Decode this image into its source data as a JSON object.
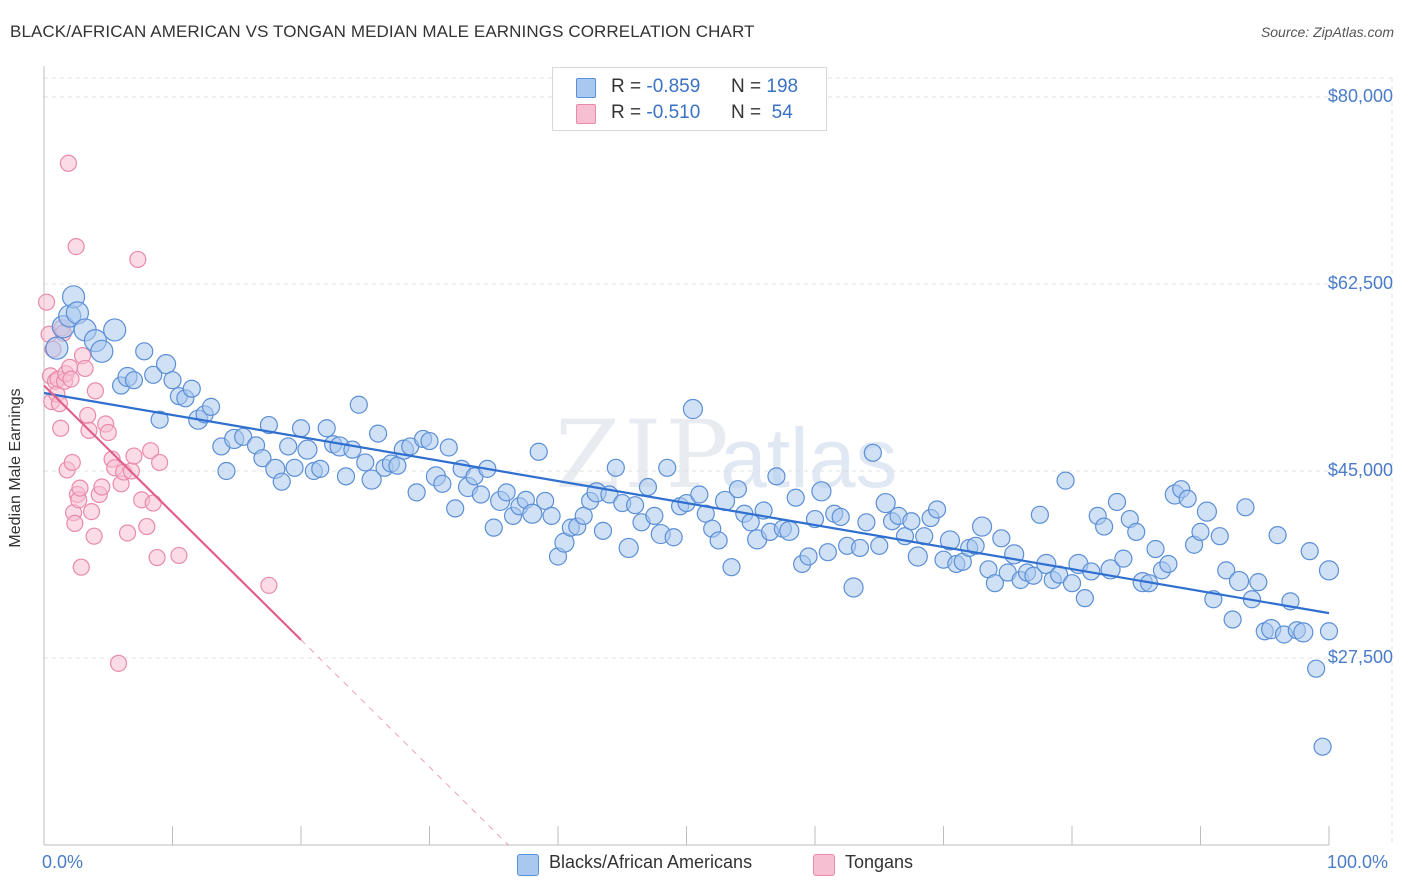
{
  "title": "BLACK/AFRICAN AMERICAN VS TONGAN MEDIAN MALE EARNINGS CORRELATION CHART",
  "source": "Source: ZipAtlas.com",
  "legend": {
    "rows": [
      {
        "r_label": "R =",
        "r_value": "-0.859",
        "n_label": "N =",
        "n_value": "198"
      },
      {
        "r_label": "R =",
        "r_value": "-0.510",
        "n_label": "N =",
        "n_value": "54"
      }
    ]
  },
  "bottom_legend": [
    "Blacks/African Americans",
    "Tongans"
  ],
  "colors": {
    "blue_fill": "#a9c8ef",
    "blue_stroke": "#5b8fd6",
    "blue_line": "#2f6fcf",
    "pink_fill": "#f7bfd2",
    "pink_stroke": "#e98aab",
    "pink_line": "#e0608c",
    "grid": "#e3e3e3",
    "tick_text": "#4a7cc9"
  },
  "chart_data": {
    "type": "scatter",
    "title": "BLACK/AFRICAN AMERICAN VS TONGAN MEDIAN MALE EARNINGS CORRELATION CHART",
    "xlabel": "",
    "ylabel": "Median Male Earnings",
    "xlim": [
      0,
      100
    ],
    "ylim": [
      10000,
      83000
    ],
    "x_tick_labels": [
      "0.0%",
      "100.0%"
    ],
    "y_ticks": [
      27500,
      45000,
      62500,
      80000
    ],
    "y_tick_labels": [
      "$27,500",
      "$45,000",
      "$62,500",
      "$80,000"
    ],
    "grid": true,
    "legend_position": "top-center",
    "series": [
      {
        "name": "Blacks/African Americans",
        "stats": {
          "R": -0.859,
          "N": 198
        },
        "trendline": {
          "x": [
            0,
            100
          ],
          "y": [
            52300,
            31700
          ]
        },
        "points": [
          [
            1.0,
            56500
          ],
          [
            1.5,
            58500
          ],
          [
            2.0,
            59500
          ],
          [
            2.3,
            61300
          ],
          [
            2.6,
            59800
          ],
          [
            3.2,
            58200
          ],
          [
            4.0,
            57200
          ],
          [
            4.5,
            56200
          ],
          [
            5.5,
            58200
          ],
          [
            6.0,
            53000
          ],
          [
            6.5,
            53800
          ],
          [
            7.0,
            53500
          ],
          [
            7.8,
            56200
          ],
          [
            8.5,
            54000
          ],
          [
            9.0,
            49800
          ],
          [
            9.5,
            55000
          ],
          [
            10.0,
            53500
          ],
          [
            10.5,
            52000
          ],
          [
            11.0,
            51800
          ],
          [
            11.5,
            52700
          ],
          [
            12.0,
            49800
          ],
          [
            12.5,
            50300
          ],
          [
            13.0,
            51000
          ],
          [
            13.8,
            47300
          ],
          [
            14.2,
            45000
          ],
          [
            14.8,
            48000
          ],
          [
            15.5,
            48200
          ],
          [
            16.5,
            47400
          ],
          [
            17.0,
            46200
          ],
          [
            17.5,
            49300
          ],
          [
            18.0,
            45200
          ],
          [
            18.5,
            44000
          ],
          [
            19.0,
            47300
          ],
          [
            19.5,
            45300
          ],
          [
            20.0,
            49000
          ],
          [
            20.5,
            47000
          ],
          [
            21.0,
            45000
          ],
          [
            21.5,
            45200
          ],
          [
            22.0,
            49000
          ],
          [
            22.5,
            47500
          ],
          [
            23.0,
            47300
          ],
          [
            23.5,
            44500
          ],
          [
            24.0,
            47000
          ],
          [
            24.5,
            51200
          ],
          [
            25.0,
            45800
          ],
          [
            25.5,
            44200
          ],
          [
            26.0,
            48500
          ],
          [
            26.5,
            45300
          ],
          [
            27.0,
            45700
          ],
          [
            27.5,
            45500
          ],
          [
            28.0,
            47000
          ],
          [
            28.5,
            47300
          ],
          [
            29.0,
            43000
          ],
          [
            29.5,
            48000
          ],
          [
            30.0,
            47800
          ],
          [
            30.5,
            44500
          ],
          [
            31.0,
            43800
          ],
          [
            31.5,
            47200
          ],
          [
            32.0,
            41500
          ],
          [
            32.5,
            45200
          ],
          [
            33.0,
            43500
          ],
          [
            33.5,
            44500
          ],
          [
            34.0,
            42800
          ],
          [
            34.5,
            45200
          ],
          [
            35.0,
            39700
          ],
          [
            35.5,
            42200
          ],
          [
            36.0,
            43000
          ],
          [
            36.5,
            40800
          ],
          [
            37.0,
            41700
          ],
          [
            37.5,
            42300
          ],
          [
            38.0,
            41000
          ],
          [
            38.5,
            46800
          ],
          [
            39.0,
            42200
          ],
          [
            39.5,
            40800
          ],
          [
            40.0,
            37000
          ],
          [
            40.5,
            38300
          ],
          [
            41.0,
            39700
          ],
          [
            41.5,
            39800
          ],
          [
            42.0,
            40800
          ],
          [
            42.5,
            42200
          ],
          [
            43.0,
            43000
          ],
          [
            43.5,
            39400
          ],
          [
            44.0,
            42800
          ],
          [
            44.5,
            45300
          ],
          [
            45.0,
            42000
          ],
          [
            45.5,
            37800
          ],
          [
            46.0,
            41800
          ],
          [
            46.5,
            40200
          ],
          [
            47.0,
            43500
          ],
          [
            47.5,
            40800
          ],
          [
            48.0,
            39100
          ],
          [
            48.5,
            45300
          ],
          [
            49.0,
            38800
          ],
          [
            49.5,
            41700
          ],
          [
            50.0,
            42000
          ],
          [
            50.5,
            50800
          ],
          [
            51.0,
            42800
          ],
          [
            51.5,
            41000
          ],
          [
            52.0,
            39600
          ],
          [
            52.5,
            38500
          ],
          [
            53.0,
            42200
          ],
          [
            53.5,
            36000
          ],
          [
            54.0,
            43300
          ],
          [
            54.5,
            41000
          ],
          [
            55.0,
            40200
          ],
          [
            55.5,
            38600
          ],
          [
            56.0,
            41300
          ],
          [
            56.5,
            39300
          ],
          [
            57.0,
            44500
          ],
          [
            57.5,
            39600
          ],
          [
            58.0,
            39400
          ],
          [
            58.5,
            42500
          ],
          [
            59.0,
            36300
          ],
          [
            59.5,
            37000
          ],
          [
            60.0,
            40500
          ],
          [
            60.5,
            43100
          ],
          [
            61.0,
            37400
          ],
          [
            61.5,
            41000
          ],
          [
            62.0,
            40700
          ],
          [
            62.5,
            38000
          ],
          [
            63.0,
            34100
          ],
          [
            63.5,
            37800
          ],
          [
            64.0,
            40200
          ],
          [
            64.5,
            46700
          ],
          [
            65.0,
            38000
          ],
          [
            65.5,
            42000
          ],
          [
            66.0,
            40300
          ],
          [
            66.5,
            40800
          ],
          [
            67.0,
            38900
          ],
          [
            67.5,
            40300
          ],
          [
            68.0,
            37000
          ],
          [
            68.5,
            38900
          ],
          [
            69.0,
            40600
          ],
          [
            69.5,
            41400
          ],
          [
            70.0,
            36700
          ],
          [
            70.5,
            38500
          ],
          [
            71.0,
            36300
          ],
          [
            71.5,
            36500
          ],
          [
            72.0,
            37800
          ],
          [
            72.5,
            38000
          ],
          [
            73.0,
            39800
          ],
          [
            73.5,
            35800
          ],
          [
            74.0,
            34500
          ],
          [
            74.5,
            38700
          ],
          [
            75.0,
            35500
          ],
          [
            75.5,
            37200
          ],
          [
            76.0,
            34800
          ],
          [
            76.5,
            35500
          ],
          [
            77.0,
            35200
          ],
          [
            77.5,
            40900
          ],
          [
            78.0,
            36300
          ],
          [
            78.5,
            34800
          ],
          [
            79.0,
            35300
          ],
          [
            79.5,
            44100
          ],
          [
            80.0,
            34500
          ],
          [
            80.5,
            36300
          ],
          [
            81.0,
            33100
          ],
          [
            81.5,
            35600
          ],
          [
            82.0,
            40800
          ],
          [
            82.5,
            39800
          ],
          [
            83.0,
            35800
          ],
          [
            83.5,
            42100
          ],
          [
            84.0,
            36800
          ],
          [
            84.5,
            40500
          ],
          [
            85.0,
            39300
          ],
          [
            85.5,
            34600
          ],
          [
            86.0,
            34500
          ],
          [
            86.5,
            37700
          ],
          [
            87.0,
            35700
          ],
          [
            87.5,
            36300
          ],
          [
            88.0,
            42800
          ],
          [
            88.5,
            43300
          ],
          [
            89.0,
            42400
          ],
          [
            89.5,
            38100
          ],
          [
            90.0,
            39300
          ],
          [
            90.5,
            41200
          ],
          [
            91.0,
            33000
          ],
          [
            91.5,
            38900
          ],
          [
            92.0,
            35700
          ],
          [
            92.5,
            31100
          ],
          [
            93.0,
            34700
          ],
          [
            93.5,
            41600
          ],
          [
            94.0,
            33000
          ],
          [
            94.5,
            34600
          ],
          [
            95.0,
            30000
          ],
          [
            95.5,
            30200
          ],
          [
            96.0,
            39000
          ],
          [
            96.5,
            29700
          ],
          [
            97.0,
            32800
          ],
          [
            97.5,
            30100
          ],
          [
            98.0,
            29900
          ],
          [
            98.5,
            37500
          ],
          [
            99.0,
            26500
          ],
          [
            99.5,
            19200
          ],
          [
            100.0,
            30000
          ],
          [
            100.0,
            35700
          ]
        ]
      },
      {
        "name": "Tongans",
        "stats": {
          "R": -0.51,
          "N": 54
        },
        "trendline": {
          "x": [
            0,
            20
          ],
          "y": [
            53000,
            29200
          ]
        },
        "points": [
          [
            0.2,
            60800
          ],
          [
            0.4,
            57800
          ],
          [
            0.5,
            53900
          ],
          [
            0.6,
            51500
          ],
          [
            0.7,
            56400
          ],
          [
            0.9,
            53400
          ],
          [
            1.0,
            52200
          ],
          [
            1.1,
            53600
          ],
          [
            1.2,
            51300
          ],
          [
            1.3,
            49000
          ],
          [
            1.4,
            58400
          ],
          [
            1.5,
            57900
          ],
          [
            1.6,
            53400
          ],
          [
            1.7,
            54100
          ],
          [
            1.8,
            45100
          ],
          [
            1.9,
            73800
          ],
          [
            2.0,
            54700
          ],
          [
            2.1,
            53600
          ],
          [
            2.2,
            45800
          ],
          [
            2.3,
            41100
          ],
          [
            2.4,
            40100
          ],
          [
            2.5,
            66000
          ],
          [
            2.6,
            42800
          ],
          [
            2.7,
            42300
          ],
          [
            2.8,
            43400
          ],
          [
            2.9,
            36000
          ],
          [
            3.0,
            55800
          ],
          [
            3.2,
            54600
          ],
          [
            3.4,
            50200
          ],
          [
            3.5,
            48800
          ],
          [
            3.7,
            41200
          ],
          [
            3.9,
            38900
          ],
          [
            4.0,
            52500
          ],
          [
            4.3,
            42800
          ],
          [
            4.5,
            43500
          ],
          [
            4.8,
            49400
          ],
          [
            5.0,
            48600
          ],
          [
            5.3,
            46100
          ],
          [
            5.5,
            45300
          ],
          [
            5.8,
            27000
          ],
          [
            6.0,
            43800
          ],
          [
            6.2,
            44900
          ],
          [
            6.5,
            39200
          ],
          [
            6.8,
            45000
          ],
          [
            7.0,
            46400
          ],
          [
            7.3,
            64800
          ],
          [
            7.6,
            42300
          ],
          [
            8.0,
            39800
          ],
          [
            8.3,
            46900
          ],
          [
            8.5,
            42000
          ],
          [
            8.8,
            36900
          ],
          [
            9.0,
            45800
          ],
          [
            10.5,
            37100
          ],
          [
            17.5,
            34300
          ]
        ]
      }
    ]
  }
}
